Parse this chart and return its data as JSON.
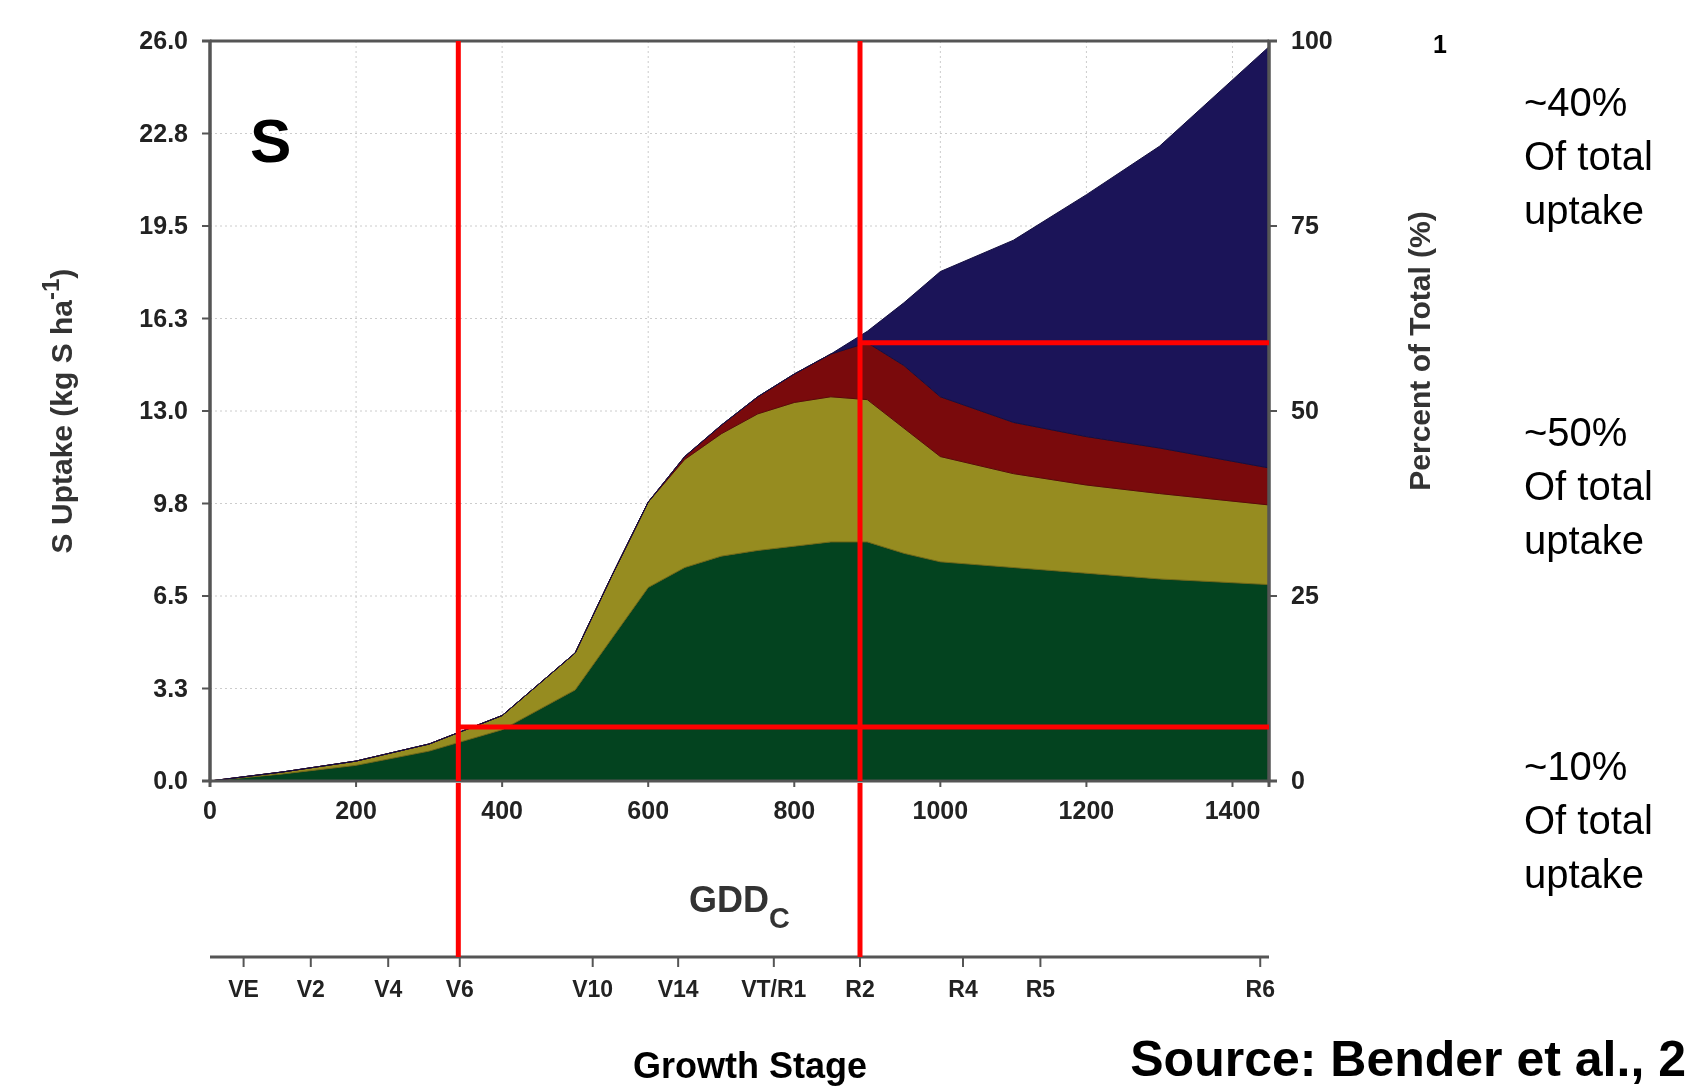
{
  "chart_data": {
    "type": "area",
    "stacked": true,
    "x": [
      0,
      100,
      200,
      300,
      400,
      500,
      550,
      600,
      650,
      700,
      750,
      800,
      850,
      900,
      950,
      1000,
      1100,
      1200,
      1300,
      1450
    ],
    "series": [
      {
        "color": "#03431f",
        "values": [
          0,
          0.25,
          0.55,
          1.05,
          1.8,
          3.2,
          5.0,
          6.8,
          7.5,
          7.9,
          8.1,
          8.25,
          8.4,
          8.4,
          8.0,
          7.7,
          7.5,
          7.3,
          7.1,
          6.9
        ]
      },
      {
        "color": "#968c20",
        "values": [
          0,
          0.07,
          0.15,
          0.25,
          0.5,
          1.3,
          2.2,
          3.0,
          3.8,
          4.3,
          4.8,
          5.05,
          5.1,
          5.0,
          4.4,
          3.7,
          3.3,
          3.1,
          3.0,
          2.8
        ]
      },
      {
        "color": "#7a0a0c",
        "values": [
          0,
          0,
          0,
          0,
          0,
          0,
          0,
          0,
          0.1,
          0.3,
          0.6,
          1.0,
          1.5,
          2.0,
          2.2,
          2.1,
          1.8,
          1.7,
          1.6,
          1.3
        ]
      },
      {
        "color": "#1b1458",
        "values": [
          0,
          0,
          0,
          0,
          0,
          0,
          0,
          0,
          0,
          0,
          0,
          0,
          0,
          0.4,
          2.2,
          4.4,
          6.4,
          8.5,
          10.6,
          14.8
        ]
      }
    ],
    "xlim": [
      0,
      1450
    ],
    "xticks": [
      0,
      200,
      400,
      600,
      800,
      1000,
      1200,
      1400
    ],
    "ylim": [
      0,
      26
    ],
    "yticks": [
      {
        "value": 0,
        "label": "0.0"
      },
      {
        "value": 3.25,
        "label": "3.3"
      },
      {
        "value": 6.5,
        "label": "6.5"
      },
      {
        "value": 9.75,
        "label": "9.8"
      },
      {
        "value": 13,
        "label": "13.0"
      },
      {
        "value": 16.25,
        "label": "16.3"
      },
      {
        "value": 19.5,
        "label": "19.5"
      },
      {
        "value": 22.75,
        "label": "22.8"
      },
      {
        "value": 26,
        "label": "26.0"
      }
    ],
    "y2lim": [
      0,
      100
    ],
    "y2ticks": [
      0,
      25,
      50,
      75,
      100
    ],
    "xlabel": "GDD$_{C}$",
    "ylabel": "S Uptake (kg S ha$^{-1}$)",
    "y2label": "Percent of Total (%)",
    "grid": true,
    "ref_lines": [
      {
        "axis": "x",
        "value": 340,
        "color": "#ff0000"
      },
      {
        "axis": "y",
        "value": 1.9,
        "color": "#ff0000"
      },
      {
        "axis": "x",
        "value": 890,
        "color": "#ff0000"
      },
      {
        "axis": "y",
        "value": 15.4,
        "color": "#ff0000"
      }
    ],
    "annotations": [
      "S",
      "1",
      "~40%\nOf total\nuptake",
      "~50%\nOf total\nuptake",
      "~10%\nOf total\nuptake",
      "Source: Bender et al., 2",
      "Growth Stage",
      "VE",
      "V2",
      "V4",
      "V6",
      "V10",
      "V14",
      "VT/R1",
      "R2",
      "R4",
      "R5",
      "R6"
    ]
  }
}
